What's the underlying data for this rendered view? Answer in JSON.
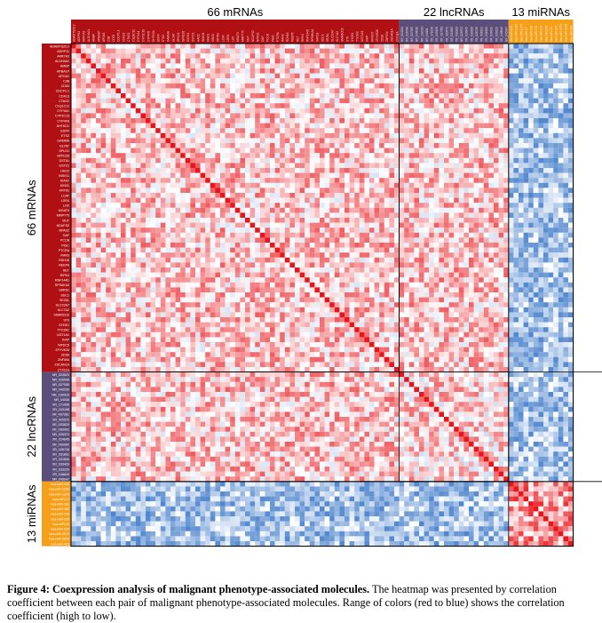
{
  "chart_data": {
    "type": "heatmap",
    "title": "",
    "groups": [
      {
        "name": "66 mRNAs",
        "count": 66,
        "color": "#b01014",
        "legend_color": "#b01014"
      },
      {
        "name": "22 lncRNAs",
        "count": 22,
        "color": "#5c4e7a",
        "legend_color": "#5c4e7a"
      },
      {
        "name": "13 miRNAs",
        "count": 13,
        "color": "#f6a01a",
        "legend_color": "#f6a01a"
      }
    ],
    "row_labels": [
      "ADAMTS20.2",
      "ADRP11",
      "AKR7A3",
      "ALDH4A1",
      "AMBP",
      "APBA1P",
      "APOA1",
      "C3B",
      "CD53",
      "CDCP1.1",
      "CDK13",
      "CTAG2",
      "C1Q1C11",
      "CYP4A1",
      "CYP2C19",
      "CYP4F8",
      "DHTKD1",
      "EDFR",
      "ETS2",
      "GAMMA",
      "GLYAT",
      "GPLD1",
      "GPR126",
      "GSTA1",
      "GSTZ1",
      "HAO2",
      "INSIG1",
      "KIAA1",
      "KIN31",
      "KRT81",
      "LCAT",
      "LGR4",
      "LHX",
      "MGAT5",
      "MMP775",
      "MUT",
      "NDUFS2",
      "NPAS2",
      "OAF",
      "PCCB",
      "PIGC",
      "PTCRA",
      "RAN3",
      "RDH16",
      "REEP6",
      "RET",
      "RIPK4",
      "RNF144D",
      "RPS6KA4",
      "SARS1",
      "SDC1",
      "SEZ6L",
      "SLC22A7",
      "SLC7A2",
      "SMARCD2",
      "ST6",
      "SYDE1",
      "TTC39C",
      "UGT1A1",
      "XIAP",
      "WFDC5",
      "ZFYVE26",
      "ZDS6",
      "ZNF594",
      "ZSCAN1A",
      "ZYX11A",
      "NR_024524",
      "NR_026548",
      "NR_027055",
      "NR_040030",
      "NR_1S0910",
      "NR_04008",
      "XR_171096",
      "XR_243198",
      "XR_4S7361",
      "XR_420572",
      "XR_0S3829",
      "XR_0S0902",
      "NR_026372",
      "XR_024845",
      "XR_0S0900",
      "XR_026726",
      "XR_331891",
      "XR_031800",
      "XR_033429",
      "XR_033229",
      "XR_248840",
      "NR_045047",
      "hsa-miR-122",
      "hsa-miR-1269",
      "hsa-miR-1275",
      "hsa-miR-17",
      "hsa-miR-181",
      "hsa-miR-192",
      "hsa-miR-194",
      "hsa-miR-200",
      "hsa-miR-21",
      "hsa-miR-224",
      "hsa-miR-2972",
      "hsa-miR-3928",
      "hsa-miR-429"
    ],
    "value_range": [
      -1,
      1
    ],
    "diagonal_value": 1,
    "block_mean_correlation": [
      [
        0.25,
        0.25,
        -0.45
      ],
      [
        0.25,
        0.18,
        -0.45
      ],
      [
        -0.45,
        -0.45,
        0.45
      ]
    ],
    "color_scale": {
      "high": "#e8151b",
      "mid": "#ffffff",
      "low": "#3b78c8"
    },
    "grid": false,
    "legend": "none"
  },
  "caption": {
    "label": "Figure 4: Coexpression analysis of malignant phenotype-associated molecules.",
    "text": " The heatmap was presented by correlation coefficient between each pair of malignant phenotype-associated molecules. Range of colors (red to blue) shows the correlation coefficient (high to low)."
  }
}
